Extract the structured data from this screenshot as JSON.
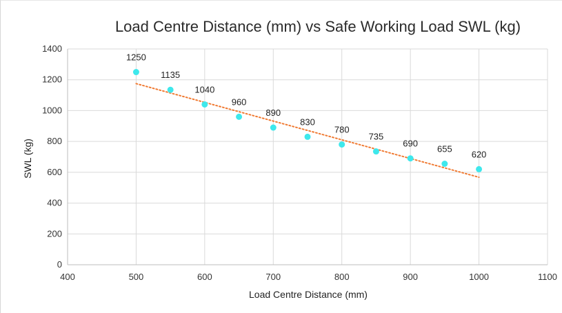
{
  "chart_data": {
    "type": "scatter",
    "title": "Load Centre Distance (mm) vs Safe Working Load SWL (kg)",
    "xlabel": "Load Centre Distance (mm)",
    "ylabel": "SWL (kg)",
    "xlim": [
      400,
      1100
    ],
    "ylim": [
      0,
      1400
    ],
    "xticks": [
      400,
      500,
      600,
      700,
      800,
      900,
      1000,
      1100
    ],
    "yticks": [
      0,
      200,
      400,
      600,
      800,
      1000,
      1200,
      1400
    ],
    "grid": true,
    "legend": "none",
    "series": [
      {
        "x": [
          500,
          550,
          600,
          650,
          700,
          750,
          800,
          850,
          900,
          950,
          1000
        ],
        "y": [
          1250,
          1135,
          1040,
          960,
          890,
          830,
          780,
          735,
          690,
          655,
          620
        ],
        "labels": [
          "1250",
          "1135",
          "1040",
          "960",
          "890",
          "830",
          "780",
          "735",
          "690",
          "655",
          "620"
        ],
        "color": "#3ee8ec"
      }
    ],
    "trendline": {
      "type": "linear",
      "x_range": [
        500,
        1000
      ],
      "color": "#f07a32",
      "style": "dotted"
    }
  }
}
